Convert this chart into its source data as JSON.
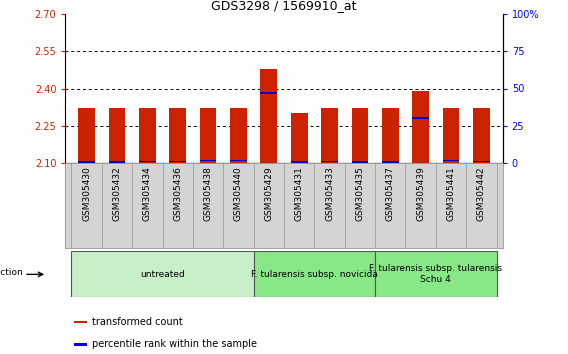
{
  "title": "GDS3298 / 1569910_at",
  "samples": [
    "GSM305430",
    "GSM305432",
    "GSM305434",
    "GSM305436",
    "GSM305438",
    "GSM305440",
    "GSM305429",
    "GSM305431",
    "GSM305433",
    "GSM305435",
    "GSM305437",
    "GSM305439",
    "GSM305441",
    "GSM305442"
  ],
  "red_values": [
    2.32,
    2.32,
    2.32,
    2.32,
    2.32,
    2.32,
    2.48,
    2.3,
    2.32,
    2.32,
    2.32,
    2.39,
    2.32,
    2.32
  ],
  "blue_values": [
    0.5,
    0.5,
    1.0,
    1.0,
    1.5,
    1.5,
    47.0,
    0.5,
    1.0,
    0.5,
    0.5,
    30.0,
    1.5,
    1.0
  ],
  "ylim_left": [
    2.1,
    2.7
  ],
  "ylim_right": [
    0,
    100
  ],
  "yticks_left": [
    2.1,
    2.25,
    2.4,
    2.55,
    2.7
  ],
  "yticks_right": [
    0,
    25,
    50,
    75,
    100
  ],
  "grid_values": [
    2.25,
    2.4,
    2.55
  ],
  "bar_bottom": 2.1,
  "infection_label": "infection",
  "legend_red": "transformed count",
  "legend_blue": "percentile rank within the sample",
  "red_color": "#cc2200",
  "blue_color": "#0000cc",
  "title_fontsize": 9,
  "label_fontsize": 6.5,
  "tick_fontsize": 7,
  "group_label_fontsize": 6.5,
  "right_tick_color": "#0000ff",
  "group_untreated_color": "#c8f0c8",
  "group_novicida_color": "#88e888",
  "group_tularensis_color": "#88e888"
}
